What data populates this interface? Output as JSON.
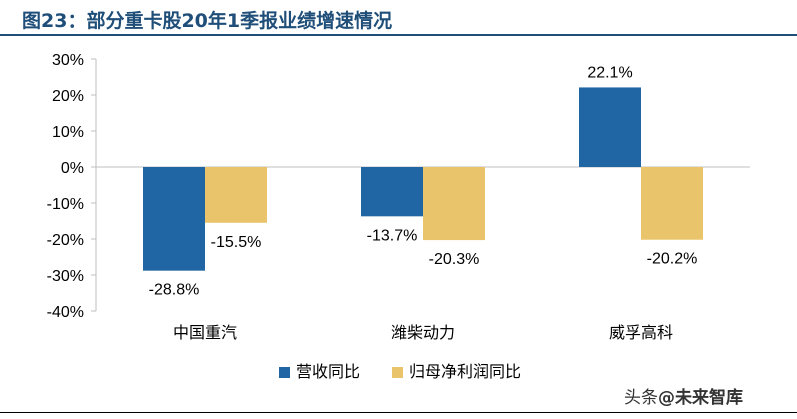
{
  "header": {
    "title": "图23：部分重卡股20年1季报业绩增速情况"
  },
  "watermark": {
    "prefix": "头条",
    "handle": "@未来智库"
  },
  "chart_data": {
    "type": "bar",
    "title": "图23：部分重卡股20年1季报业绩增速情况",
    "categories": [
      "中国重汽",
      "潍柴动力",
      "威孚高科"
    ],
    "series": [
      {
        "name": "营收同比",
        "values": [
          -28.8,
          -13.7,
          22.1
        ],
        "labels": [
          "-28.8%",
          "-13.7%",
          "22.1%"
        ],
        "color": "#2066a4"
      },
      {
        "name": "归母净利润同比",
        "values": [
          -15.5,
          -20.3,
          -20.2
        ],
        "labels": [
          "-15.5%",
          "-20.3%",
          "-20.2%"
        ],
        "color": "#e9c46a"
      }
    ],
    "y_ticks": [
      30,
      20,
      10,
      0,
      -10,
      -20,
      -30,
      -40
    ],
    "y_tick_labels": [
      "30%",
      "20%",
      "10%",
      "0%",
      "-10%",
      "-20%",
      "-30%",
      "-40%"
    ],
    "ylim": [
      -40,
      30
    ],
    "xlabel": "",
    "ylabel": "",
    "grid": false,
    "legend_position": "bottom-center"
  }
}
